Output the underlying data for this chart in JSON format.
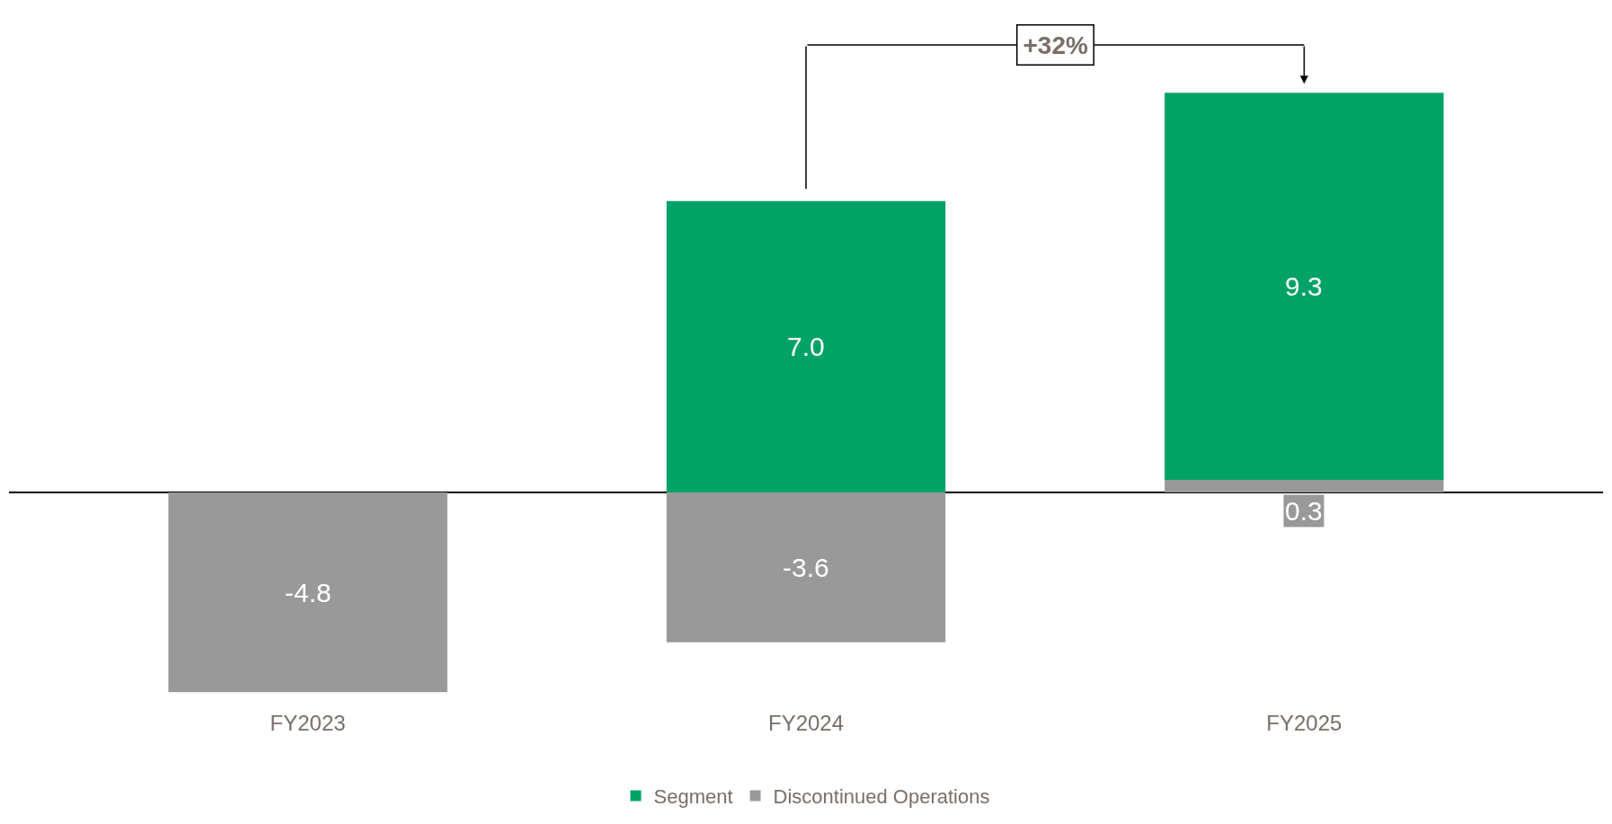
{
  "chart_data": {
    "type": "bar",
    "stacked": true,
    "categories": [
      "FY2023",
      "FY2024",
      "FY2025"
    ],
    "series": [
      {
        "name": "Discontinued Operations",
        "color": "#999999",
        "values": [
          -4.8,
          -3.6,
          0.3
        ],
        "value_labels": [
          "-4.8",
          "-3.6",
          "0.3"
        ]
      },
      {
        "name": "Segment",
        "color": "#00a266",
        "values": [
          null,
          7.0,
          9.3
        ],
        "value_labels": [
          null,
          "7.0",
          "9.3"
        ]
      }
    ],
    "legend": "bottom",
    "annotations": [
      "+32%"
    ]
  }
}
